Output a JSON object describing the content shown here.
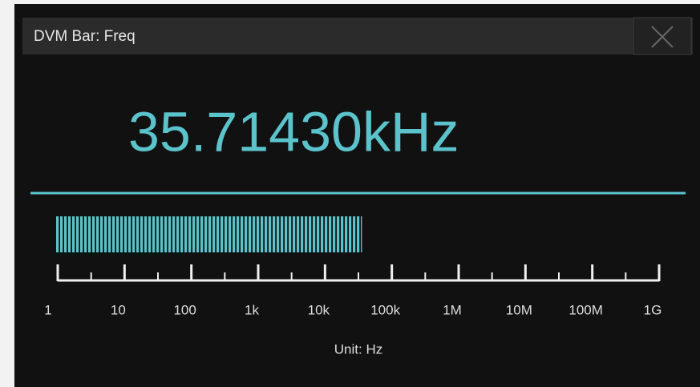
{
  "window": {
    "title": "DVM Bar: Freq"
  },
  "reading": {
    "value": 35714.3,
    "label": "35.71430kHz"
  },
  "scale": {
    "log": true,
    "xlim": [
      1,
      1000000000
    ],
    "xticks": [
      1,
      10,
      100,
      {
        "value": 1000,
        "label": "1k"
      },
      {
        "value": 10000,
        "label": "10k"
      },
      {
        "value": 100000,
        "label": "100k"
      },
      {
        "value": 1000000,
        "label": "1M"
      },
      {
        "value": 10000000,
        "label": "10M"
      },
      {
        "value": 100000000,
        "label": "100M"
      },
      {
        "value": 1000000000,
        "label": "1G"
      }
    ],
    "unit_label": "Unit: Hz",
    "color": "#5bc3cb"
  }
}
